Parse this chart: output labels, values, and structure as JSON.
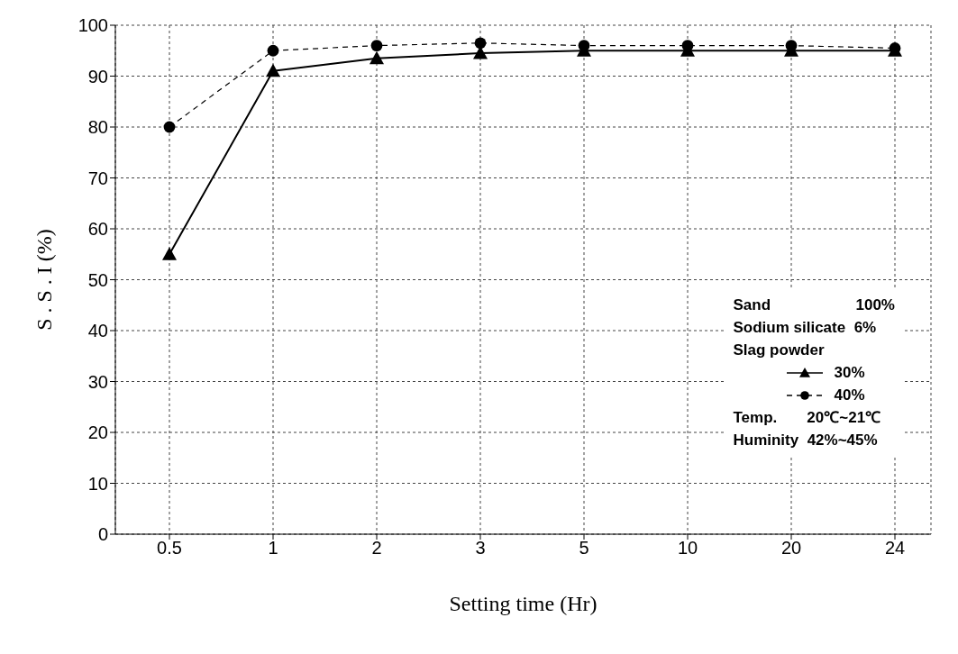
{
  "chart_data": {
    "type": "line",
    "xlabel": "Setting time (Hr)",
    "ylabel": "S . S . I (%)",
    "categories": [
      "0.5",
      "1",
      "2",
      "3",
      "5",
      "10",
      "20",
      "24"
    ],
    "series": [
      {
        "name": "30%",
        "color": "#000000",
        "marker": "triangle",
        "line_style": "solid",
        "values": [
          55,
          91,
          93.5,
          94.5,
          95,
          95,
          95,
          95
        ]
      },
      {
        "name": "40%",
        "color": "#000000",
        "marker": "circle",
        "line_style": "dashed",
        "values": [
          80,
          95,
          96,
          96.5,
          96,
          96,
          96,
          95.5
        ]
      }
    ],
    "ylim": [
      0,
      100
    ],
    "yticks": [
      0,
      10,
      20,
      30,
      40,
      50,
      60,
      70,
      80,
      90,
      100
    ],
    "grid": true,
    "legend": "bottom right",
    "legend_title": "Slag powder",
    "annotations": [
      "Sand                    100%",
      "Sodium silicate  6%",
      "Temp.       20℃~21℃",
      "Huminity  42%~45%"
    ]
  }
}
